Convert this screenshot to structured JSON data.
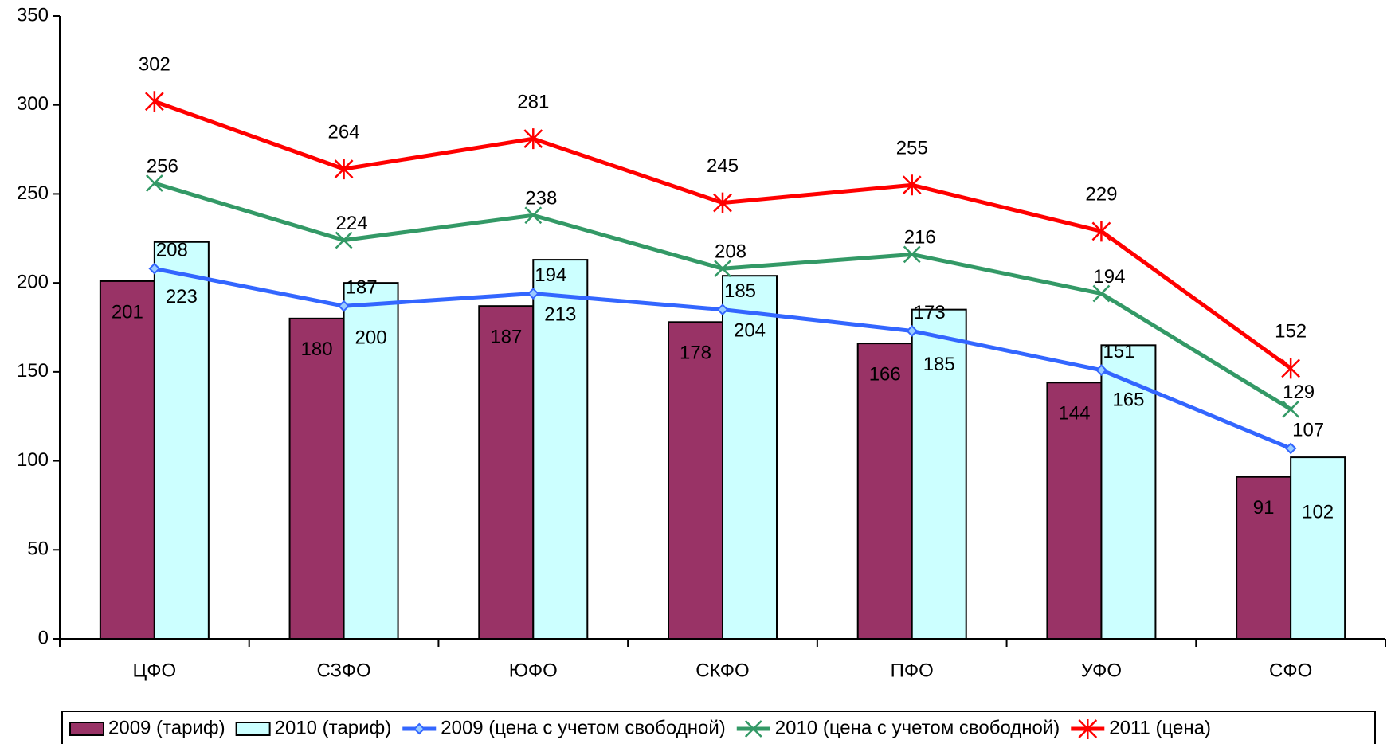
{
  "chart_data": {
    "type": "bar",
    "categories": [
      "ЦФО",
      "СЗФО",
      "ЮФО",
      "СКФО",
      "ПФО",
      "УФО",
      "СФО"
    ],
    "series": [
      {
        "name": "2009 (тариф)",
        "type": "bar",
        "color": "#993366",
        "values": [
          201,
          180,
          187,
          178,
          166,
          144,
          91
        ]
      },
      {
        "name": "2010 (тариф)",
        "type": "bar",
        "color": "#ccffff",
        "values": [
          223,
          200,
          213,
          204,
          185,
          165,
          102
        ]
      },
      {
        "name": "2009 (цена с учетом свободной)",
        "type": "line",
        "marker": "diamond",
        "color": "#3366ff",
        "values": [
          208,
          187,
          194,
          185,
          173,
          151,
          107
        ]
      },
      {
        "name": "2010 (цена с учетом свободной)",
        "type": "line",
        "marker": "x",
        "color": "#339966",
        "values": [
          256,
          224,
          238,
          208,
          216,
          194,
          129
        ]
      },
      {
        "name": "2011 (цена)",
        "type": "line",
        "marker": "star",
        "color": "#ff0000",
        "values": [
          302,
          264,
          281,
          245,
          255,
          229,
          152
        ]
      }
    ],
    "ylim": [
      0,
      350
    ],
    "yticks": [
      0,
      50,
      100,
      150,
      200,
      250,
      300,
      350
    ],
    "grid": false,
    "legend": "bottom"
  }
}
